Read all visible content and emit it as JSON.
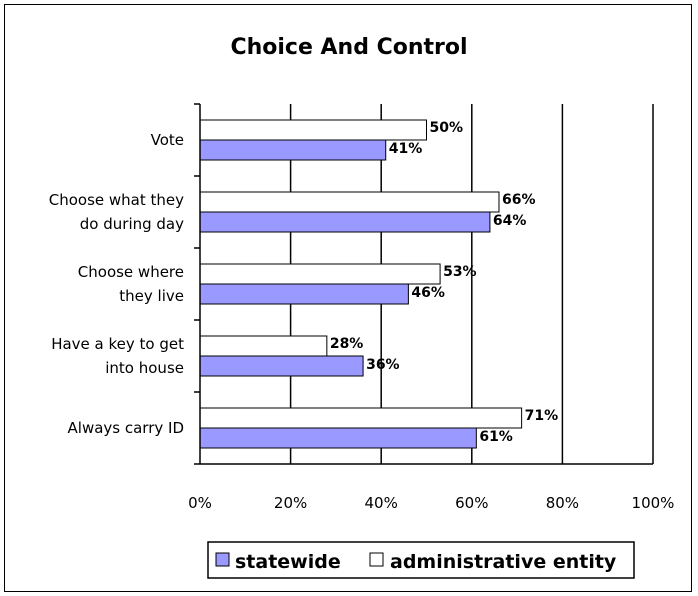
{
  "chart_data": {
    "type": "bar",
    "orientation": "horizontal",
    "title": "Choice And Control",
    "categories": [
      "Vote",
      "Choose what they do during day",
      "Choose where they live",
      "Have a key to get into house",
      "Always carry ID"
    ],
    "category_lines": [
      [
        "Vote"
      ],
      [
        "Choose what they",
        "do during day"
      ],
      [
        "Choose where",
        "they live"
      ],
      [
        "Have a key to get",
        "into house"
      ],
      [
        "Always carry ID"
      ]
    ],
    "series": [
      {
        "name": "administrative entity",
        "values": [
          50,
          66,
          53,
          28,
          71
        ],
        "labels": [
          "50%",
          "66%",
          "53%",
          "28%",
          "71%"
        ],
        "color": "#ffffff"
      },
      {
        "name": "statewide",
        "values": [
          41,
          64,
          46,
          36,
          61
        ],
        "labels": [
          "41%",
          "64%",
          "46%",
          "36%",
          "61%"
        ],
        "color": "#9999ff"
      }
    ],
    "xlim": [
      0,
      100
    ],
    "xticks": [
      "0%",
      "20%",
      "40%",
      "60%",
      "80%",
      "100%"
    ],
    "xtick_values": [
      0,
      20,
      40,
      60,
      80,
      100
    ],
    "grid": "vertical",
    "legend": {
      "placement": "bottom",
      "entries": [
        "statewide",
        "administrative entity"
      ]
    }
  }
}
